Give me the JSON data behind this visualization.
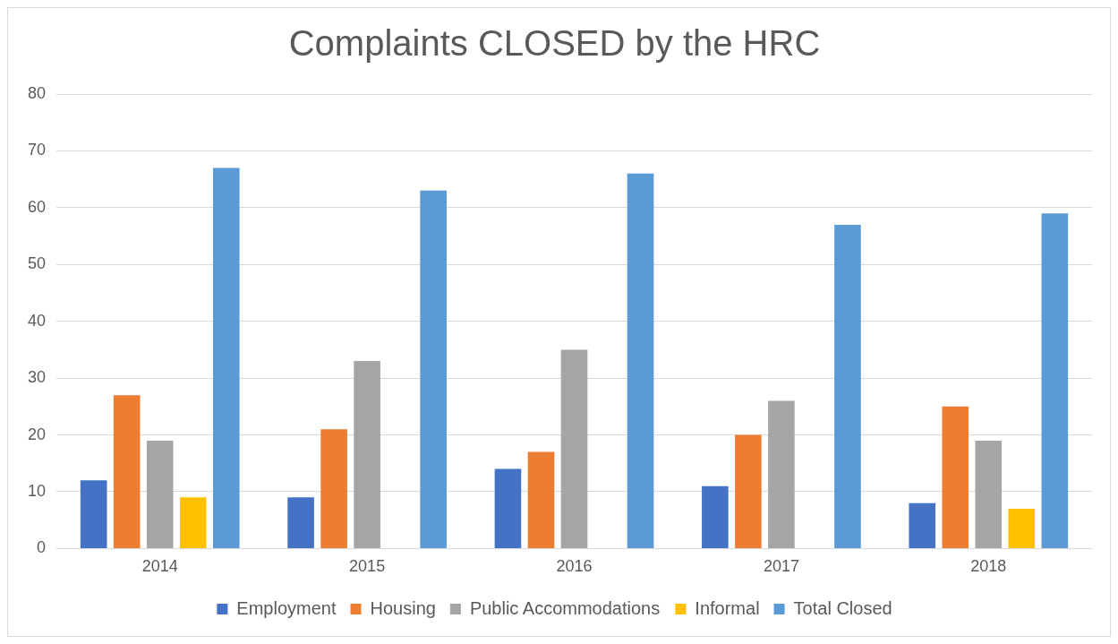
{
  "chart_data": {
    "type": "bar",
    "title": "Complaints CLOSED by the HRC",
    "categories": [
      "2014",
      "2015",
      "2016",
      "2017",
      "2018"
    ],
    "series": [
      {
        "name": "Employment",
        "color": "#4472c4",
        "values": [
          12,
          9,
          14,
          11,
          8
        ]
      },
      {
        "name": "Housing",
        "color": "#ed7d31",
        "values": [
          27,
          21,
          17,
          20,
          25
        ]
      },
      {
        "name": "Public Accommodations",
        "color": "#a5a5a5",
        "values": [
          19,
          33,
          35,
          26,
          19
        ]
      },
      {
        "name": "Informal",
        "color": "#ffc000",
        "values": [
          9,
          null,
          null,
          null,
          7
        ]
      },
      {
        "name": "Total Closed",
        "color": "#5b9bd5",
        "values": [
          67,
          63,
          66,
          57,
          59
        ]
      }
    ],
    "ylim": [
      0,
      80
    ],
    "yticks": [
      0,
      10,
      20,
      30,
      40,
      50,
      60,
      70,
      80
    ],
    "grid": "y",
    "legend": "bottom"
  }
}
